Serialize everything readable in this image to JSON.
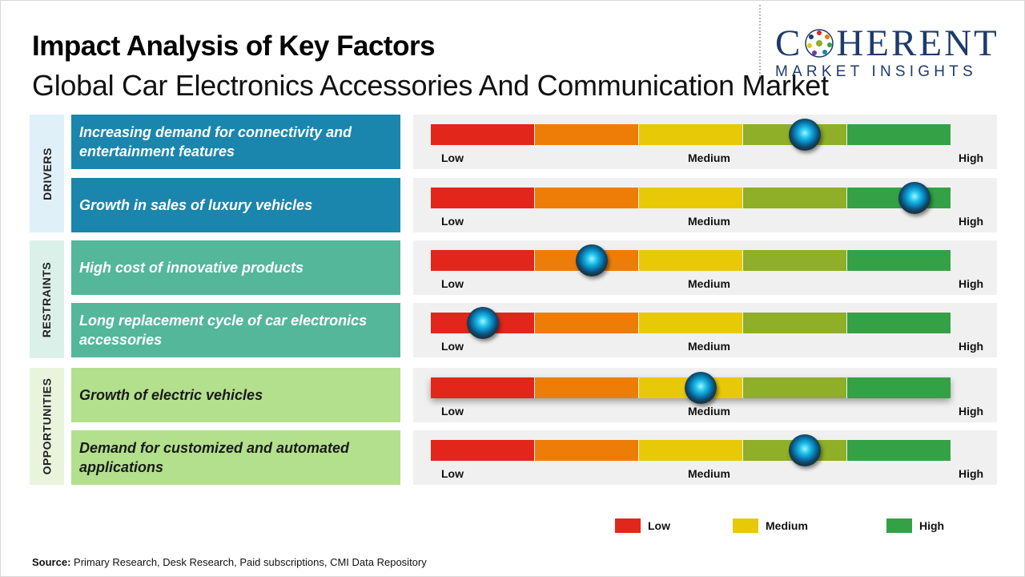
{
  "title": "Impact Analysis of Key Factors",
  "subtitle": "Global Car Electronics Accessories And Communication Market",
  "logo": {
    "name_part1": "C",
    "name_part2": "HERENT",
    "tagline": "MARKET INSIGHTS"
  },
  "colors": {
    "low": "#e2261c",
    "low_medium": "#ee7d08",
    "medium": "#e8c907",
    "medium_high": "#8eaf27",
    "high": "#34a146",
    "drivers": "#1b86ad",
    "restraints": "#55b79a",
    "opportunities": "#b3e08c"
  },
  "scale_labels": {
    "low": "Low",
    "medium": "Medium",
    "high": "High"
  },
  "chart_data": {
    "type": "gauge-table",
    "title": "Impact Analysis of Key Factors",
    "subtitle": "Global Car Electronics Accessories And Communication Market",
    "scale": [
      "Low",
      "Medium",
      "High"
    ],
    "value_range": [
      0,
      1
    ],
    "categories": [
      {
        "name": "DRIVERS",
        "factors": [
          {
            "label": "Increasing demand for connectivity and entertainment features",
            "impact": 0.72
          },
          {
            "label": "Growth in sales of luxury vehicles",
            "impact": 0.93
          }
        ]
      },
      {
        "name": "RESTRAINTS",
        "factors": [
          {
            "label": "High cost of innovative products",
            "impact": 0.31
          },
          {
            "label": "Long replacement cycle of car electronics accessories",
            "impact": 0.1
          }
        ]
      },
      {
        "name": "OPPORTUNITIES",
        "factors": [
          {
            "label": "Growth of electric vehicles",
            "impact": 0.52
          },
          {
            "label": "Demand for customized and automated applications",
            "impact": 0.72
          }
        ]
      }
    ],
    "legend": [
      {
        "label": "Low",
        "color": "#e2261c"
      },
      {
        "label": "Medium",
        "color": "#e8c907"
      },
      {
        "label": "High",
        "color": "#34a146"
      }
    ]
  },
  "source": {
    "label": "Source:",
    "text": "Primary Research, Desk Research, Paid subscriptions, CMI Data Repository"
  }
}
